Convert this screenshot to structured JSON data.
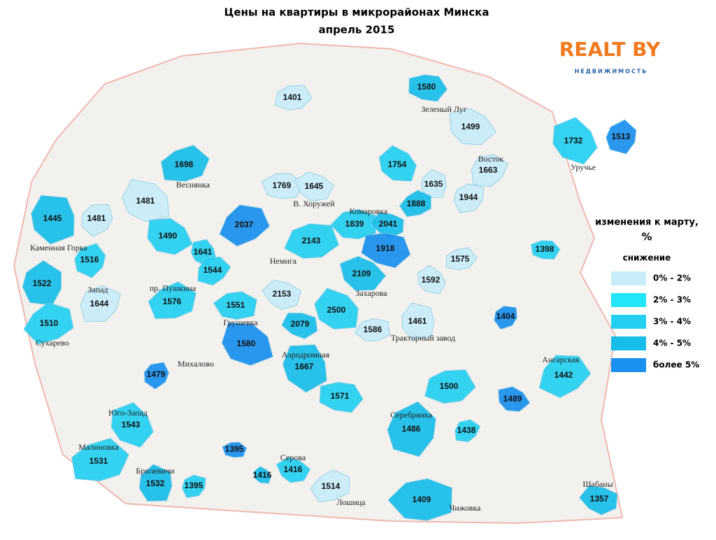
{
  "header": {
    "title": "Цены на квартиры в микрорайонах Минска",
    "subtitle": "апрель 2015"
  },
  "logo": {
    "brand": "REALT BY",
    "tagline": "НЕДВИЖИМОСТЬ"
  },
  "legend": {
    "title": "изменения к марту,",
    "unit": "%",
    "subtitle": "снижение",
    "items": [
      {
        "label": "0% - 2%",
        "color": "#c9ecf9"
      },
      {
        "label": "2% - 3%",
        "color": "#22e6f7"
      },
      {
        "label": "3% - 4%",
        "color": "#24d0f2"
      },
      {
        "label": "4% - 5%",
        "color": "#17bde9"
      },
      {
        "label": "более 5%",
        "color": "#1a90ef"
      }
    ]
  },
  "districts": [
    {
      "price": "1401",
      "color": "#c9ecf9"
    },
    {
      "price": "1580",
      "color": "#17bde9"
    },
    {
      "name": "Зеленый Луг",
      "price": "1499",
      "color": "#c9ecf9"
    },
    {
      "name": "Уручье",
      "price": "1732",
      "color": "#24d0f2"
    },
    {
      "price": "1513",
      "color": "#1a90ef"
    },
    {
      "name": "Восток",
      "price": "1663",
      "color": "#c9ecf9"
    },
    {
      "name": "Веснянка",
      "price": "1698",
      "color": "#17bde9"
    },
    {
      "price": "1769",
      "color": "#c9ecf9"
    },
    {
      "name": "В. Хоружей",
      "price": "1645",
      "color": "#c9ecf9"
    },
    {
      "price": "1754",
      "color": "#24d0f2"
    },
    {
      "price": "1635",
      "color": "#c9ecf9"
    },
    {
      "price": "1944",
      "color": "#c9ecf9"
    },
    {
      "price": "1888",
      "color": "#17bde9"
    },
    {
      "name": "Комаровка",
      "price": "1839",
      "color": "#24d0f2"
    },
    {
      "price": "2041",
      "color": "#17bde9"
    },
    {
      "price": "1481",
      "color": "#c9ecf9"
    },
    {
      "price": "1445",
      "color": "#17bde9"
    },
    {
      "price": "1481",
      "color": "#c9ecf9"
    },
    {
      "price": "2037",
      "color": "#1a90ef"
    },
    {
      "name": "Немига",
      "price": "2143",
      "color": "#24d0f2"
    },
    {
      "price": "1918",
      "color": "#1a90ef"
    },
    {
      "price": "1490",
      "color": "#24d0f2"
    },
    {
      "price": "1641",
      "color": "#24d0f2"
    },
    {
      "name": "Каменная Горка",
      "price": "1516",
      "color": "#24d0f2"
    },
    {
      "price": "1544",
      "color": "#24d0f2"
    },
    {
      "price": "1575",
      "color": "#c9ecf9"
    },
    {
      "price": "1398",
      "color": "#24d0f2"
    },
    {
      "name": "Захарова",
      "price": "2109",
      "color": "#17bde9"
    },
    {
      "price": "1592",
      "color": "#c9ecf9"
    },
    {
      "price": "1522",
      "color": "#17bde9"
    },
    {
      "name": "Запад",
      "price": "1644",
      "color": "#c9ecf9"
    },
    {
      "name": "пр. Пушкина",
      "price": "1576",
      "color": "#24d0f2"
    },
    {
      "price": "1551",
      "color": "#24d0f2"
    },
    {
      "price": "2153",
      "color": "#c9ecf9"
    },
    {
      "price": "2500",
      "color": "#24d0f2"
    },
    {
      "name": "Тракторный завод",
      "price": "1461",
      "color": "#c9ecf9"
    },
    {
      "price": "1404",
      "color": "#1a90ef"
    },
    {
      "name": "Сухарево",
      "price": "1510",
      "color": "#24d0f2"
    },
    {
      "price": "1586",
      "color": "#c9ecf9"
    },
    {
      "price": "2079",
      "color": "#17bde9"
    },
    {
      "name": "Грушевка",
      "price": "1580",
      "color": "#1a90ef"
    },
    {
      "name": "Аэродромная",
      "price": "1667",
      "color": "#17bde9"
    },
    {
      "name": "Михалово",
      "price": "1479",
      "color": "#1a90ef"
    },
    {
      "name": "Ангарская",
      "price": "1442",
      "color": "#24d0f2"
    },
    {
      "price": "1500",
      "color": "#24d0f2"
    },
    {
      "price": "1571",
      "color": "#24d0f2"
    },
    {
      "price": "1489",
      "color": "#1a90ef"
    },
    {
      "name": "Юго-Запад",
      "price": "1543",
      "color": "#24d0f2"
    },
    {
      "name": "Серебрянка",
      "price": "1486",
      "color": "#17bde9"
    },
    {
      "price": "1438",
      "color": "#24d0f2"
    },
    {
      "name": "Малиновка",
      "price": "1531",
      "color": "#24d0f2"
    },
    {
      "price": "1395",
      "color": "#1a90ef"
    },
    {
      "name": "Серова",
      "price": "1416",
      "color": "#24d0f2"
    },
    {
      "price": "1416",
      "color": "#17bde9"
    },
    {
      "name": "Брилевичи",
      "price": "1532",
      "color": "#17bde9"
    },
    {
      "price": "1395",
      "color": "#24d0f2"
    },
    {
      "name": "Лошица",
      "price": "1514",
      "color": "#c9ecf9"
    },
    {
      "name": "Чижовка",
      "price": "1409",
      "color": "#17bde9"
    },
    {
      "name": "Шабаны",
      "price": "1357",
      "color": "#17bde9"
    }
  ]
}
